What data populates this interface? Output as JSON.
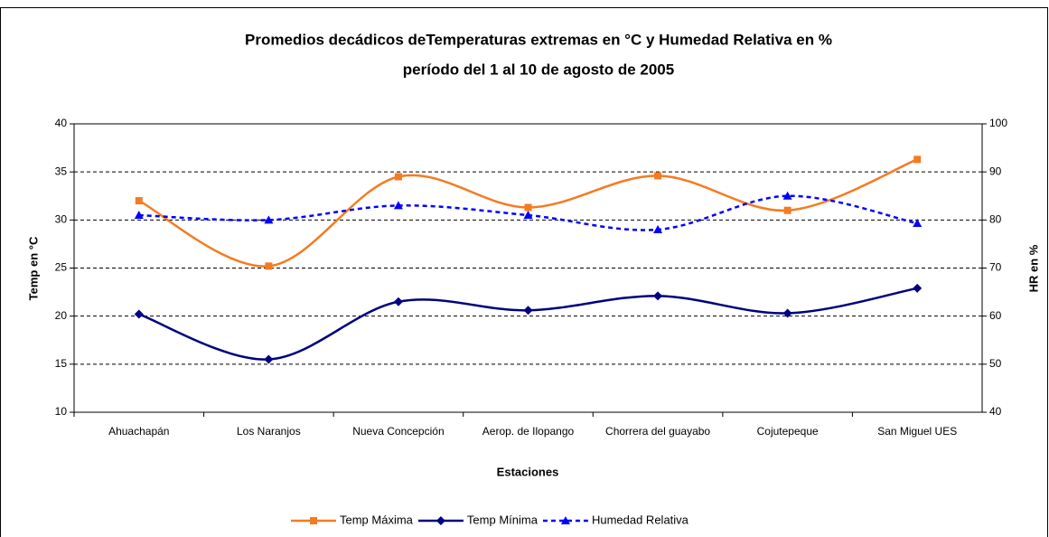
{
  "chart_data": {
    "type": "line",
    "title": "Promedios decádicos deTemperaturas extremas en °C  y Humedad Relativa en %",
    "subtitle": "período del 1 al 10 de agosto de 2005",
    "x_label": "Estaciones",
    "y_label": "Temp en °C",
    "y2_label": "HR en %",
    "categories": [
      "Ahuachapán",
      "Los Naranjos",
      "Nueva Concepción",
      "Aerop. de Ilopango",
      "Chorrera del guayabo",
      "Cojutepeque",
      "San Miguel UES"
    ],
    "series": [
      {
        "name": "Temp Máxima",
        "color": "#f47b20",
        "marker": "square",
        "values": [
          32,
          25.2,
          34.5,
          31.3,
          34.6,
          31,
          36.3
        ]
      },
      {
        "name": "Temp Mínima",
        "color": "#000080",
        "marker": "diamond",
        "values": [
          20.2,
          15.5,
          21.5,
          20.6,
          22.1,
          20.3,
          22.9
        ]
      },
      {
        "name": "Humedad Relativa",
        "color": "#0000ff",
        "marker": "triangle",
        "dashed": true,
        "axis": "y2",
        "values": [
          81,
          80,
          83,
          81,
          78,
          85,
          79.3
        ]
      }
    ],
    "ylim": [
      10,
      40
    ],
    "yticks": [
      10,
      15,
      20,
      25,
      30,
      35,
      40
    ],
    "y2lim": [
      40,
      100
    ],
    "y2ticks": [
      40,
      50,
      60,
      70,
      80,
      90,
      100
    ],
    "grid": true,
    "smooth": true,
    "legend": "bottom"
  }
}
